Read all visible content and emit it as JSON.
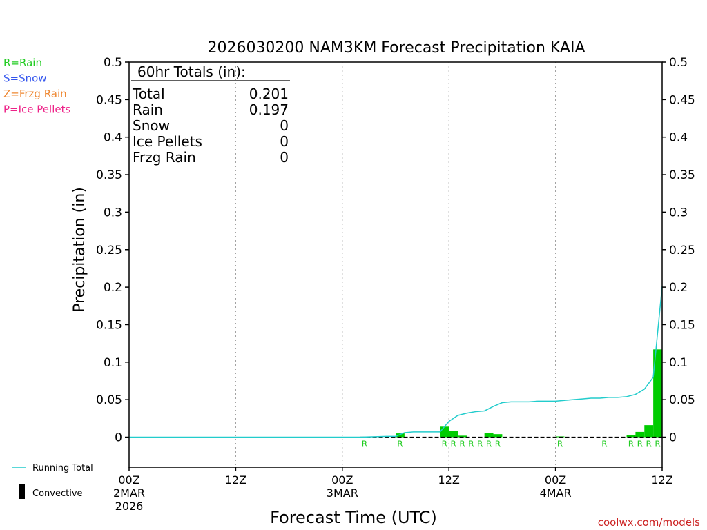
{
  "chart_data": {
    "type": "bar",
    "title": "2026030200 NAM3KM Forecast Precipitation KAIA",
    "xlabel": "Forecast Time (UTC)",
    "ylabel": "Precipitation (in)",
    "xlim": [
      0,
      60
    ],
    "ylim": [
      -0.04,
      0.5
    ],
    "yticks": [
      0,
      0.05,
      0.1,
      0.15,
      0.2,
      0.25,
      0.3,
      0.35,
      0.4,
      0.45,
      0.5
    ],
    "ytick_labels": [
      "0",
      "0.05",
      "0.1",
      "0.15",
      "0.2",
      "0.25",
      "0.3",
      "0.35",
      "0.4",
      "0.45",
      "0.5"
    ],
    "xticks": [
      {
        "hour": 0,
        "lines": [
          "00Z",
          "2MAR",
          "2026"
        ]
      },
      {
        "hour": 12,
        "lines": [
          "12Z"
        ]
      },
      {
        "hour": 24,
        "lines": [
          "00Z",
          "3MAR"
        ]
      },
      {
        "hour": 36,
        "lines": [
          "12Z"
        ]
      },
      {
        "hour": 48,
        "lines": [
          "00Z",
          "4MAR"
        ]
      },
      {
        "hour": 60,
        "lines": [
          "12Z"
        ]
      }
    ],
    "legend_types": [
      {
        "label": "R=Rain",
        "color": "#22cc22"
      },
      {
        "label": "S=Snow",
        "color": "#3355ee"
      },
      {
        "label": "Z=Frzg Rain",
        "color": "#ee8833"
      },
      {
        "label": "P=Ice Pellets",
        "color": "#ee2288"
      }
    ],
    "legend_lines": [
      {
        "label": "Running Total",
        "color": "#22cccc",
        "kind": "line"
      },
      {
        "label": "Convective",
        "color": "#000000",
        "kind": "bar"
      }
    ],
    "totals": {
      "header": "60hr Totals (in):",
      "rows": [
        {
          "label": "Total",
          "value": "0.201"
        },
        {
          "label": "Rain",
          "value": "0.197"
        },
        {
          "label": "Snow",
          "value": "0"
        },
        {
          "label": "Ice Pellets",
          "value": "0"
        },
        {
          "label": "Frzg Rain",
          "value": "0"
        }
      ]
    },
    "bar_color": "#00cc00",
    "series": [
      {
        "name": "Hourly Precipitation",
        "hours": [
          31,
          36,
          37,
          38,
          41,
          42,
          49,
          57,
          58,
          59,
          60
        ],
        "values": [
          0.005,
          0.014,
          0.008,
          0.002,
          0.006,
          0.004,
          0.001,
          0.003,
          0.007,
          0.016,
          0.117
        ]
      },
      {
        "name": "Running Total",
        "hours": [
          0,
          26,
          29,
          30,
          31,
          32,
          35,
          36,
          37,
          38,
          39,
          40,
          41,
          42,
          43,
          44,
          45,
          46,
          47,
          48,
          49,
          50,
          51,
          52,
          53,
          54,
          55,
          56,
          57,
          58,
          59,
          60
        ],
        "values": [
          0,
          0,
          0.001,
          0.001,
          0.006,
          0.007,
          0.007,
          0.021,
          0.029,
          0.032,
          0.034,
          0.035,
          0.041,
          0.046,
          0.047,
          0.047,
          0.047,
          0.048,
          0.048,
          0.048,
          0.049,
          0.05,
          0.051,
          0.052,
          0.052,
          0.053,
          0.053,
          0.054,
          0.057,
          0.064,
          0.08,
          0.201
        ]
      }
    ],
    "precip_type_markers": {
      "letter": "R",
      "color": "#22cc22",
      "hours": [
        27,
        31,
        36,
        37,
        38,
        39,
        40,
        41,
        42,
        49,
        54,
        57,
        58,
        59,
        60
      ]
    },
    "credit": "coolwx.com/models"
  }
}
